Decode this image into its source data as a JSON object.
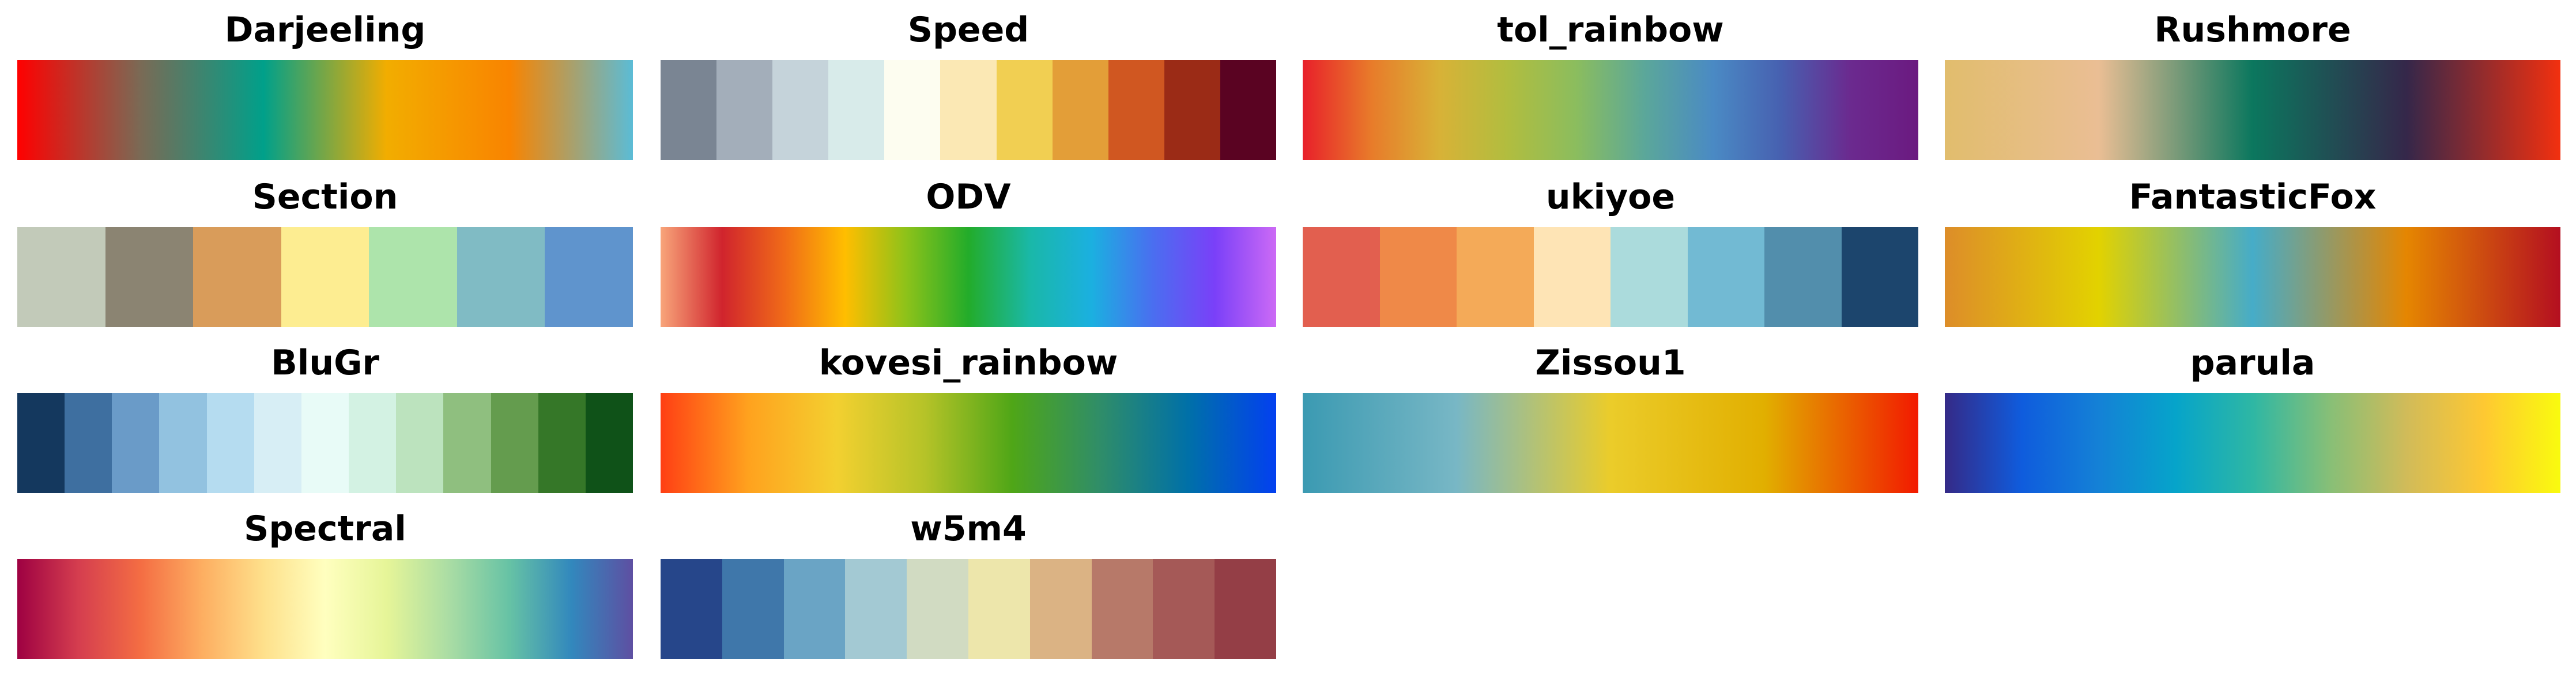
{
  "palettes": [
    {
      "name": "Darjeeling",
      "type": "continuous",
      "colors": [
        "#ff0000",
        "#7a6a55",
        "#00a08a",
        "#f2ad00",
        "#f98400",
        "#5bbcd6"
      ]
    },
    {
      "name": "Speed",
      "type": "discrete",
      "colors": [
        "#7a8593",
        "#a3aeba",
        "#c5d3da",
        "#d8ebea",
        "#fdfdf0",
        "#fbe8b4",
        "#f1cf52",
        "#e39e38",
        "#d05721",
        "#9b2b16",
        "#5a0322"
      ]
    },
    {
      "name": "tol_rainbow",
      "type": "continuous",
      "colors": [
        "#e8202a",
        "#e87b2a",
        "#d8b237",
        "#b1bd3f",
        "#8bbd5e",
        "#5ba79a",
        "#4a8ac4",
        "#4760b0",
        "#6b2a8f",
        "#6b1a80"
      ]
    },
    {
      "name": "Rushmore",
      "type": "continuous",
      "colors": [
        "#e1bd6d",
        "#eabe94",
        "#0b775e",
        "#35274a",
        "#f2300f"
      ]
    },
    {
      "name": "Section",
      "type": "discrete",
      "colors": [
        "#c2cab9",
        "#8b8472",
        "#d99c5a",
        "#fded91",
        "#ade4ab",
        "#80bbc4",
        "#5f94cd"
      ]
    },
    {
      "name": "ODV",
      "type": "continuous",
      "colors": [
        "#f8a57a",
        "#d0242d",
        "#f06a18",
        "#ffbe00",
        "#8cc21a",
        "#23ac2a",
        "#1ab8a8",
        "#1bb0e0",
        "#4a6ef0",
        "#7a40f8",
        "#cc6af5"
      ]
    },
    {
      "name": "ukiyoe",
      "type": "discrete",
      "colors": [
        "#e25f4f",
        "#ef8948",
        "#f4aa58",
        "#fee4b5",
        "#abdbdc",
        "#72bad3",
        "#528eac",
        "#1c456d"
      ]
    },
    {
      "name": "FantasticFox",
      "type": "continuous",
      "colors": [
        "#dd8d29",
        "#e2d200",
        "#46acc8",
        "#e58601",
        "#b40f20"
      ]
    },
    {
      "name": "BluGr",
      "type": "discrete",
      "colors": [
        "#14385e",
        "#3e6fa0",
        "#6a9bc8",
        "#92c2e0",
        "#b5dcf0",
        "#d7eef5",
        "#e8fbf7",
        "#d3f2e3",
        "#bce3be",
        "#8fbf7f",
        "#649c4e",
        "#357728",
        "#0f5218"
      ]
    },
    {
      "name": "kovesi_rainbow",
      "type": "continuous",
      "colors": [
        "#ff3f14",
        "#ffa21e",
        "#f3d030",
        "#b6c328",
        "#4fa617",
        "#2f8d69",
        "#0070a8",
        "#0340f0"
      ]
    },
    {
      "name": "Zissou1",
      "type": "continuous",
      "colors": [
        "#3b9ab2",
        "#78b7c5",
        "#ebcc2a",
        "#e1af00",
        "#f21a00"
      ]
    },
    {
      "name": "parula",
      "type": "continuous",
      "colors": [
        "#352a87",
        "#0f5cdd",
        "#1481d6",
        "#06a4ca",
        "#2eb7a4",
        "#87bf77",
        "#d1bb59",
        "#fec832",
        "#f9fb0e"
      ]
    },
    {
      "name": "Spectral",
      "type": "continuous",
      "colors": [
        "#9e0142",
        "#d53e4f",
        "#f46d43",
        "#fdae61",
        "#fee08b",
        "#ffffbf",
        "#e6f598",
        "#abdda4",
        "#66c2a5",
        "#3288bd",
        "#5e4fa2"
      ]
    },
    {
      "name": "w5m4",
      "type": "discrete",
      "colors": [
        "#26468a",
        "#3f77aa",
        "#6aa4c5",
        "#a3c9d3",
        "#d1dbc2",
        "#ede6ab",
        "#dbb384",
        "#b77969",
        "#a55957",
        "#943e46"
      ]
    }
  ]
}
